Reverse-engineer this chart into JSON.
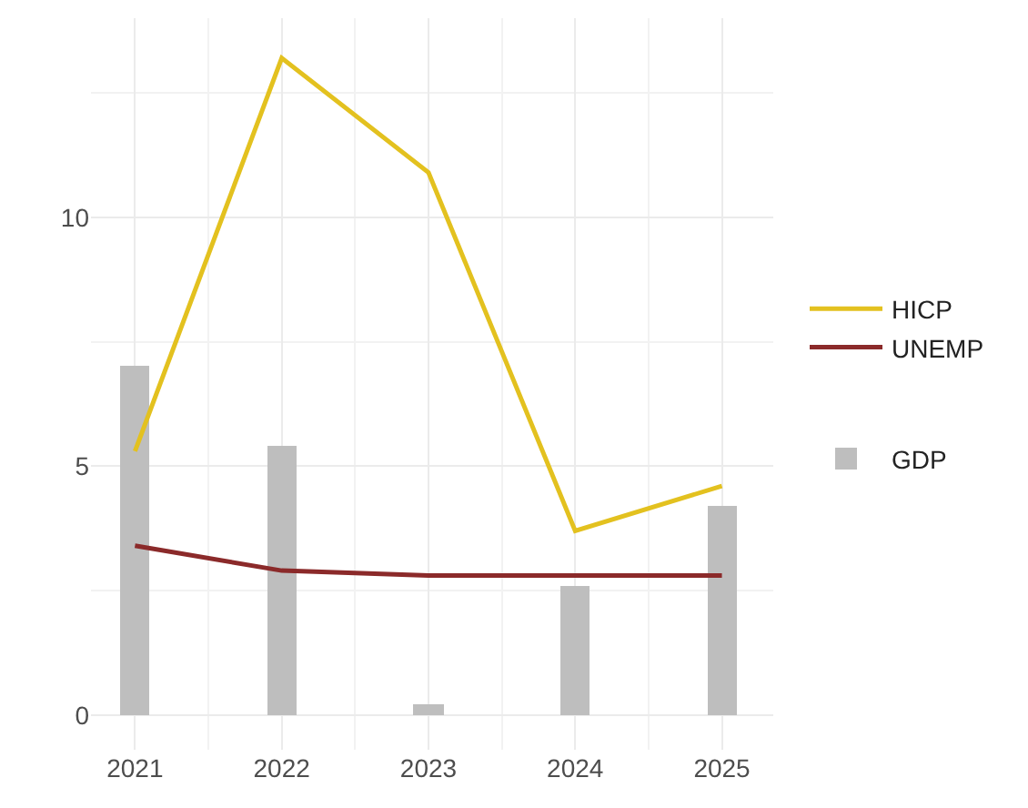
{
  "chart_data": {
    "type": "line",
    "x": [
      2021,
      2022,
      2023,
      2024,
      2025
    ],
    "series": [
      {
        "name": "HICP",
        "color": "#e3c11f",
        "values": [
          5.3,
          13.2,
          10.9,
          3.7,
          4.6
        ]
      },
      {
        "name": "UNEMP",
        "color": "#8b2a2a",
        "values": [
          3.4,
          2.9,
          2.8,
          2.8,
          2.8
        ]
      },
      {
        "name": "GDP",
        "type": "bar",
        "color": "#bebebe",
        "values": [
          7.0,
          5.4,
          0.2,
          2.6,
          4.2
        ]
      }
    ],
    "xlim": [
      2020.7,
      2025.35
    ],
    "xticks": [
      2021,
      2022,
      2023,
      2024,
      2025
    ],
    "ylim": [
      -0.7,
      14.0
    ],
    "yticks": [
      0,
      5,
      10
    ],
    "grid": true,
    "legend": "right"
  }
}
